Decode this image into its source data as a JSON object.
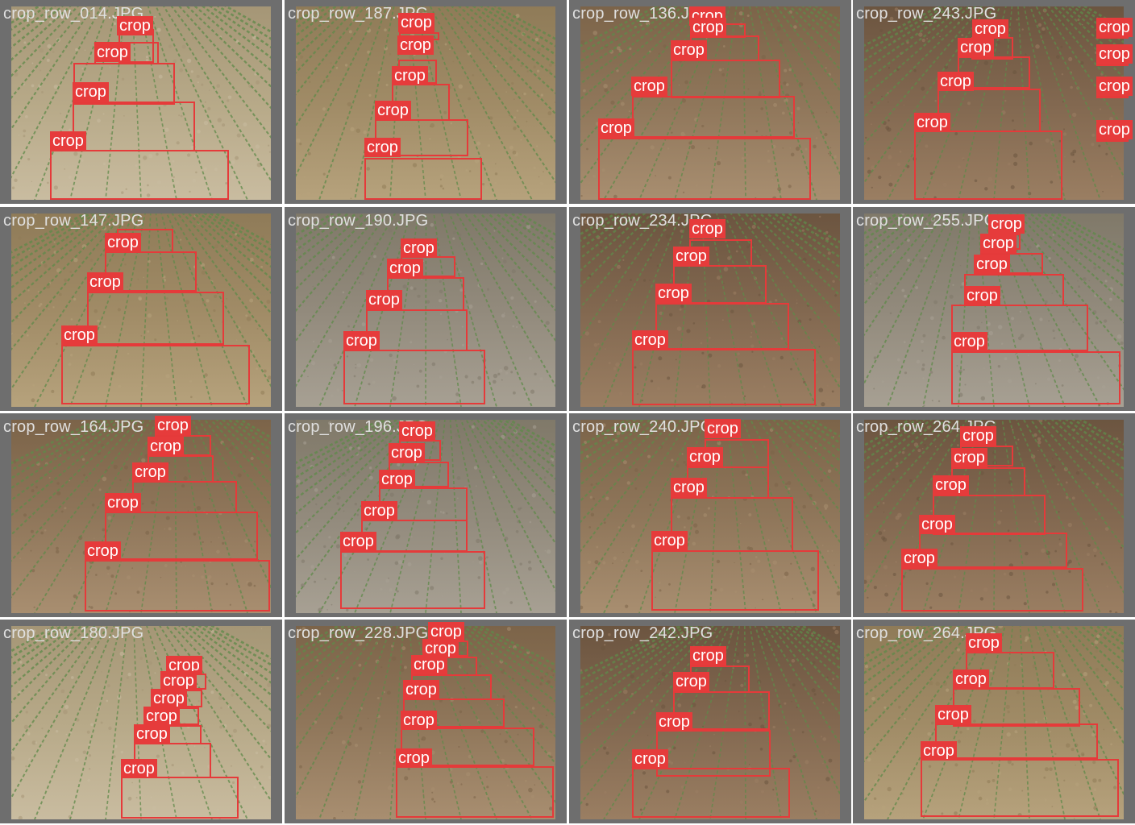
{
  "detection": {
    "class_label": "crop",
    "box_color": "#e53a3a",
    "label_bg_color": "#e63b3b",
    "label_text_color": "#ffffff"
  },
  "tiles": [
    {
      "filename": "crop_row_014.JPG",
      "soil": "light",
      "labels": [
        "crop",
        "crop",
        "crop",
        "crop",
        "crop"
      ]
    },
    {
      "filename": "crop_row_187.JPG",
      "soil": "tan",
      "labels": [
        "crop",
        "crop",
        "crop",
        "crop",
        "crop"
      ]
    },
    {
      "filename": "crop_row_136.JPG",
      "soil": "brown",
      "labels": [
        "crop",
        "crop",
        "crop",
        "crop",
        "crop"
      ]
    },
    {
      "filename": "crop_row_243.JPG",
      "soil": "dark",
      "labels": [
        "crop",
        "crop",
        "crop",
        "crop",
        "crop",
        "crop",
        "crop",
        "crop"
      ]
    },
    {
      "filename": "crop_row_147.JPG",
      "soil": "tan",
      "labels": [
        "crop",
        "crop",
        "crop",
        "crop"
      ]
    },
    {
      "filename": "crop_row_190.JPG",
      "soil": "gray",
      "labels": [
        "crop",
        "crop",
        "crop",
        "crop"
      ]
    },
    {
      "filename": "crop_row_234.JPG",
      "soil": "dark",
      "labels": [
        "crop",
        "crop",
        "crop",
        "crop"
      ]
    },
    {
      "filename": "crop_row_255.JPG",
      "soil": "gray",
      "labels": [
        "crop",
        "crop",
        "crop",
        "crop",
        "crop"
      ]
    },
    {
      "filename": "crop_row_164.JPG",
      "soil": "brown",
      "labels": [
        "crop",
        "crop",
        "crop",
        "crop",
        "crop"
      ]
    },
    {
      "filename": "crop_row_196.JPG",
      "soil": "gray",
      "labels": [
        "crop",
        "crop",
        "crop",
        "crop",
        "crop"
      ]
    },
    {
      "filename": "crop_row_240.JPG",
      "soil": "brown",
      "labels": [
        "crop",
        "crop",
        "crop",
        "crop"
      ]
    },
    {
      "filename": "crop_row_264.JPG",
      "soil": "dark",
      "labels": [
        "crop",
        "crop",
        "crop",
        "crop",
        "crop"
      ]
    },
    {
      "filename": "crop_row_180.JPG",
      "soil": "light",
      "labels": [
        "crop",
        "crop",
        "crop",
        "crop",
        "crop",
        "crop",
        "crop"
      ]
    },
    {
      "filename": "crop_row_228.JPG",
      "soil": "brown",
      "labels": [
        "crop",
        "crop",
        "crop",
        "crop",
        "crop",
        "crop"
      ]
    },
    {
      "filename": "crop_row_242.JPG",
      "soil": "dark",
      "labels": [
        "crop",
        "crop",
        "crop",
        "crop"
      ]
    },
    {
      "filename": "crop_row_264.JPG",
      "soil": "tan",
      "labels": [
        "crop",
        "crop",
        "crop",
        "crop"
      ]
    }
  ]
}
